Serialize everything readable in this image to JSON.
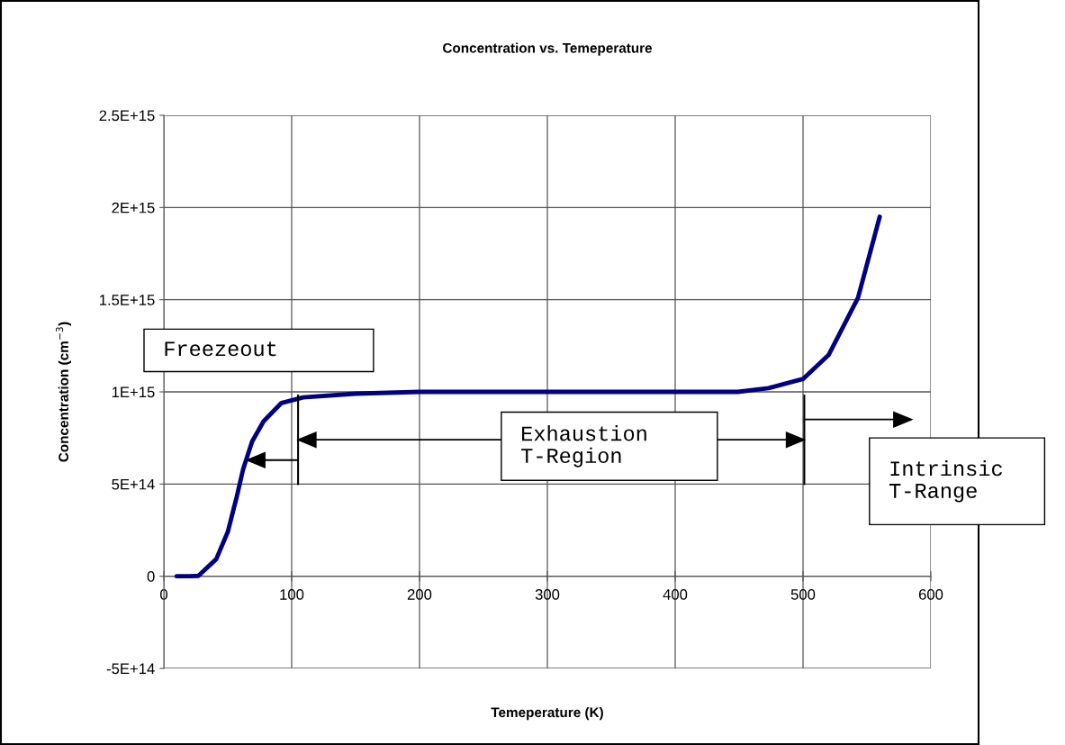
{
  "chart_data": {
    "type": "line",
    "title": "Concentration vs. Temeperature",
    "xlabel": "Temeperature (K)",
    "ylabel": "Concentration (cm$^{−3}$)",
    "x": [
      10,
      20,
      27,
      41,
      50,
      57,
      62,
      69,
      78,
      92,
      109,
      150,
      200,
      300,
      400,
      449,
      473,
      500,
      520,
      543,
      560
    ],
    "series": [
      {
        "color": "#000080",
        "values": [
          0,
          0,
          2000000000000.0,
          93000000000000.0,
          240000000000000.0,
          430000000000000.0,
          580000000000000.0,
          730000000000000.0,
          840000000000000.0,
          940000000000000.0,
          970000000000000.0,
          990000000000000.0,
          1000000000000000.0,
          1000000000000000.0,
          1000000000000000.0,
          1000000000000000.0,
          1020000000000000.0,
          1070000000000000.0,
          1200000000000000.0,
          1510000000000000.0,
          1950000000000000.0
        ]
      }
    ],
    "xlim": [
      0,
      600
    ],
    "xticks": [
      0,
      100,
      200,
      300,
      400,
      500,
      600
    ],
    "ylim": [
      -500000000000000.0,
      2500000000000000.0
    ],
    "yticks": [
      {
        "value": -500000000000000.0,
        "label": "-5E+14"
      },
      {
        "value": 0,
        "label": "0"
      },
      {
        "value": 500000000000000.0,
        "label": "5E+14"
      },
      {
        "value": 1000000000000000.0,
        "label": "1E+15"
      },
      {
        "value": 1500000000000000.0,
        "label": "1.5E+15"
      },
      {
        "value": 2000000000000000.0,
        "label": "2E+15"
      },
      {
        "value": 2500000000000000.0,
        "label": "2.5E+15"
      }
    ],
    "grid": true,
    "marker": "none",
    "line_style": "solid",
    "annotations": [
      "Freezeout",
      "Exhaustion\nT-Region",
      "Intrinsic\nT-Range"
    ]
  }
}
